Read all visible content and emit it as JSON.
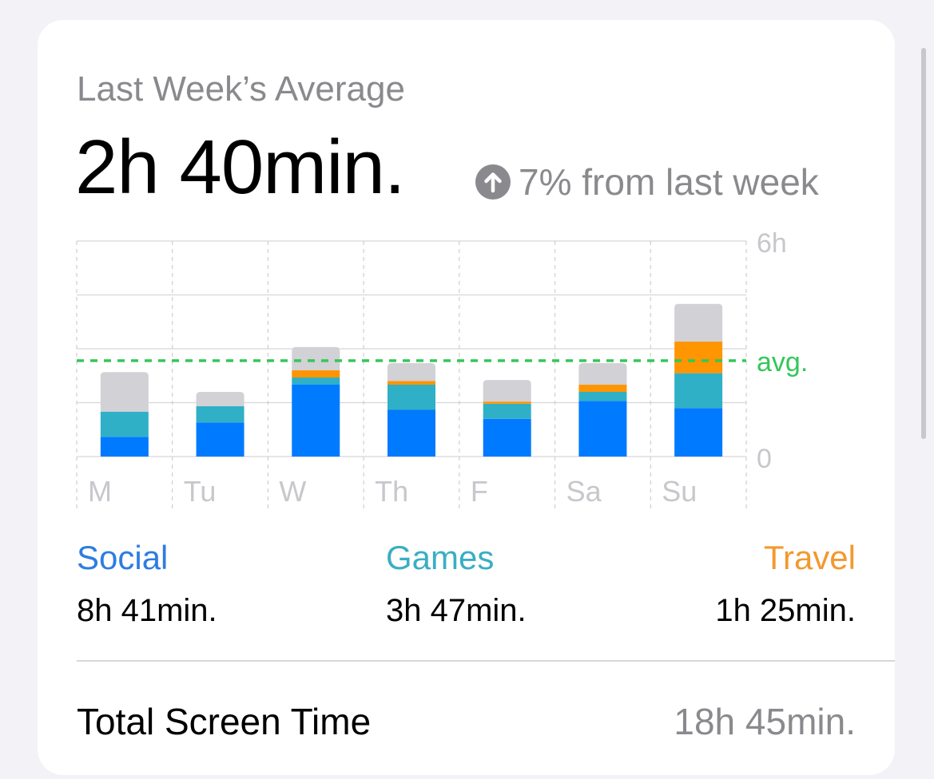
{
  "card": {
    "subtitle": "Last Week’s Average",
    "average": "2h 40min.",
    "change_text": "7% from last week",
    "change_icon": "arrow-up-circle-icon"
  },
  "chart_data": {
    "type": "bar",
    "stacked": true,
    "categories": [
      "M",
      "Tu",
      "W",
      "Th",
      "F",
      "Sa",
      "Su"
    ],
    "series": [
      {
        "name": "Social",
        "color": "#007aff",
        "values": [
          0.55,
          0.95,
          2.0,
          1.3,
          1.05,
          1.55,
          1.35
        ]
      },
      {
        "name": "Games",
        "color": "#30b0c7",
        "values": [
          0.7,
          0.45,
          0.2,
          0.7,
          0.42,
          0.25,
          0.97
        ]
      },
      {
        "name": "Travel",
        "color": "#ff9500",
        "values": [
          0,
          0,
          0.2,
          0.1,
          0.06,
          0.2,
          0.88
        ]
      },
      {
        "name": "Other",
        "color": "#d1d1d6",
        "values": [
          1.1,
          0.4,
          0.65,
          0.5,
          0.6,
          0.6,
          1.05
        ]
      }
    ],
    "ylim": [
      0,
      6
    ],
    "y_ticks": [
      "6h",
      "0"
    ],
    "average_label": "avg.",
    "average_value": 2.67,
    "average_color": "#34c759",
    "grid": true
  },
  "legend": [
    {
      "name": "Social",
      "value": "8h 41min.",
      "color": "#2e7de1"
    },
    {
      "name": "Games",
      "value": "3h 47min.",
      "color": "#3aaec3"
    },
    {
      "name": "Travel",
      "value": "1h 25min.",
      "color": "#f2992e"
    }
  ],
  "total": {
    "label": "Total Screen Time",
    "value": "18h 45min."
  }
}
